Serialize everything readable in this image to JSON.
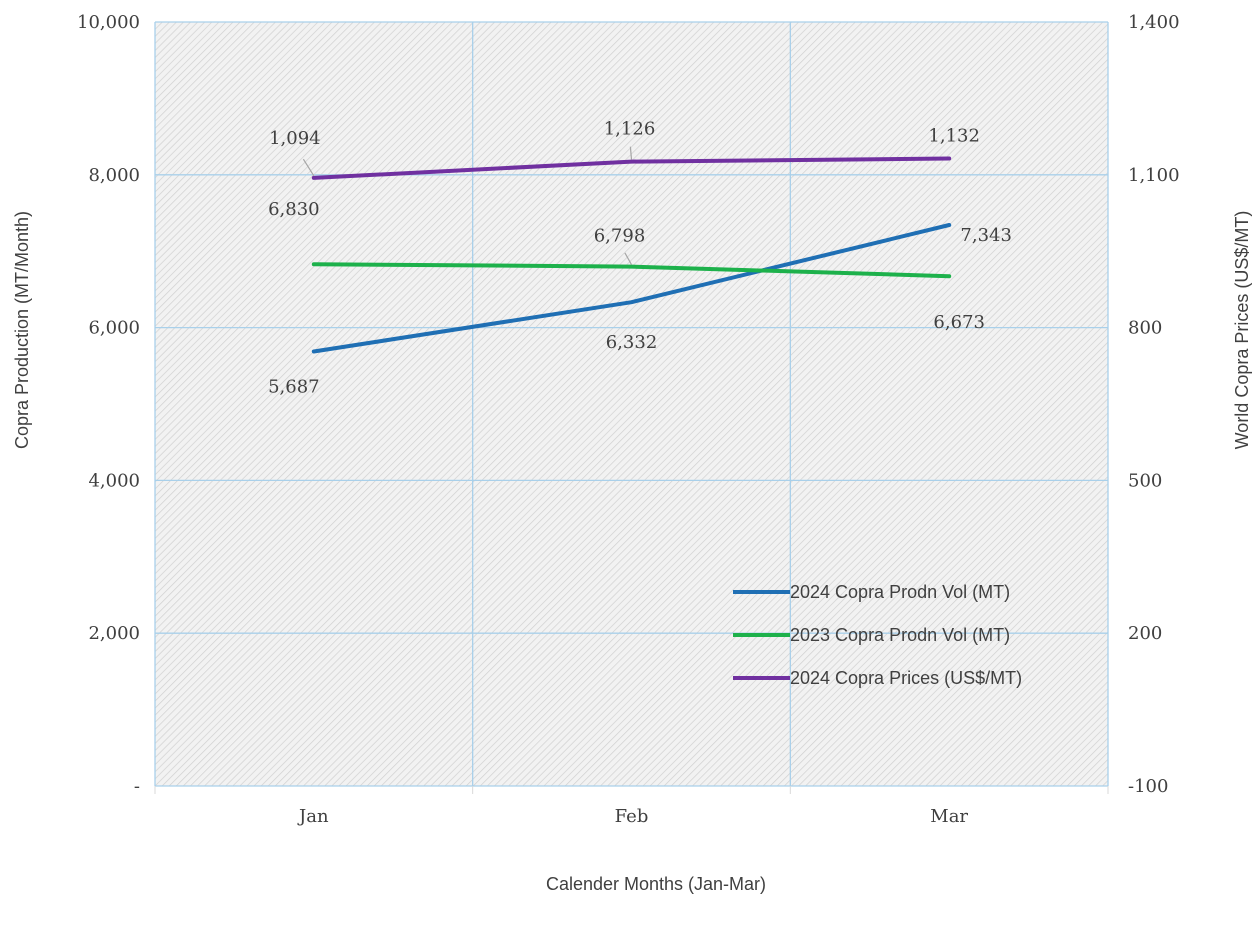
{
  "chart_data": {
    "type": "line",
    "categories": [
      "Jan",
      "Feb",
      "Mar"
    ],
    "xlabel": "Calender Months (Jan-Mar)",
    "ylabel": "Copra Production (MT/Month)",
    "y2label": "World Copra Prices (US$/MT)",
    "ylim": [
      0,
      10000
    ],
    "y2lim": [
      -100,
      1400
    ],
    "yticks": [
      0,
      2000,
      4000,
      6000,
      8000,
      10000
    ],
    "ytick_labels": [
      "-",
      "2,000",
      "4,000",
      "6,000",
      "8,000",
      "10,000"
    ],
    "y2ticks": [
      -100,
      200,
      500,
      800,
      1100,
      1400
    ],
    "y2tick_labels": [
      "-100",
      "200",
      "500",
      "800",
      "1,100",
      "1,400"
    ],
    "grid": true,
    "legend_position": "bottom-right",
    "series": [
      {
        "name": "2024 Copra Prodn Vol (MT)",
        "axis": "left",
        "color": "#1f6fb4",
        "values": [
          5687,
          6332,
          7343
        ],
        "labels": [
          "5,687",
          "6,332",
          "7,343"
        ]
      },
      {
        "name": "2023 Copra Prodn Vol (MT)",
        "axis": "left",
        "color": "#1db14b",
        "values": [
          6830,
          6798,
          6673
        ],
        "labels": [
          "6,830",
          "6,798",
          "6,673"
        ]
      },
      {
        "name": "2024 Copra Prices (US$/MT)",
        "axis": "right",
        "color": "#7030a0",
        "values": [
          1094,
          1126,
          1132
        ],
        "labels": [
          "1,094",
          "1,126",
          "1,132"
        ]
      }
    ]
  }
}
